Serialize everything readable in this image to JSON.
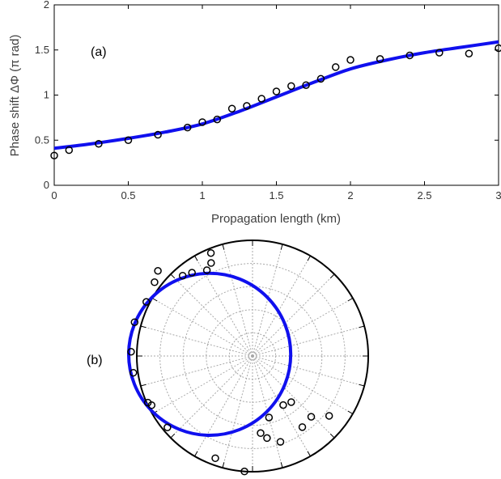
{
  "chart_data": [
    {
      "type": "line",
      "panel_label": "(a)",
      "xlabel": "Propagation length (km)",
      "ylabel": "Phase shift ΔΦ (π rad)",
      "xlim": [
        0,
        3
      ],
      "ylim": [
        0,
        2
      ],
      "xticks": [
        0,
        0.5,
        1,
        1.5,
        2,
        2.5,
        3
      ],
      "xtick_labels": [
        "0",
        "0.5",
        "1",
        "1.5",
        "2",
        "2.5",
        "3"
      ],
      "yticks": [
        0,
        0.5,
        1,
        1.5,
        2
      ],
      "ytick_labels": [
        "0",
        "0.5",
        "1",
        "1.5",
        "2"
      ],
      "grid": false,
      "series": [
        {
          "style": "markers",
          "marker": "open-circle",
          "color": "#000000",
          "x": [
            0,
            0.1,
            0.3,
            0.5,
            0.7,
            0.9,
            1.0,
            1.1,
            1.2,
            1.3,
            1.4,
            1.5,
            1.6,
            1.7,
            1.8,
            1.9,
            2.0,
            2.2,
            2.4,
            2.6,
            2.8,
            3.0
          ],
          "y": [
            0.33,
            0.39,
            0.46,
            0.5,
            0.56,
            0.64,
            0.7,
            0.73,
            0.85,
            0.88,
            0.96,
            1.04,
            1.1,
            1.11,
            1.18,
            1.31,
            1.39,
            1.4,
            1.44,
            1.47,
            1.46,
            1.52
          ]
        },
        {
          "style": "line",
          "color": "#1010ee",
          "x": [
            0,
            0.25,
            0.5,
            0.75,
            1.0,
            1.25,
            1.5,
            1.75,
            2.0,
            2.25,
            2.5,
            2.75,
            3.0
          ],
          "y": [
            0.41,
            0.46,
            0.52,
            0.59,
            0.68,
            0.82,
            0.98,
            1.14,
            1.29,
            1.39,
            1.47,
            1.53,
            1.59
          ]
        }
      ]
    },
    {
      "type": "polar",
      "panel_label": "(b)",
      "radial_max": 1,
      "rings": 5,
      "spokes_deg": 15,
      "grid": true,
      "series": [
        {
          "style": "markers",
          "marker": "open-circle",
          "color": "#000000",
          "angle_deg": [
            112,
            114,
            118,
            126,
            131,
            138,
            143,
            153,
            164,
            178,
            188,
            204,
            206,
            220,
            250,
            260,
            266,
            276,
            280,
            285,
            288,
            302,
            305,
            310,
            314,
            322
          ],
          "radius": [
            0.96,
            0.88,
            0.84,
            0.89,
            0.92,
            1.1,
            1.06,
            1.03,
            1.06,
            1.05,
            1.04,
            0.99,
            0.97,
            0.96,
            0.94,
            1.16,
            1.0,
            0.67,
            0.72,
            0.55,
            0.78,
            0.5,
            0.75,
            0.52,
            0.73,
            0.84
          ]
        },
        {
          "style": "line",
          "color": "#1010ee",
          "curve": "circle",
          "center_xy": [
            -0.37,
            0.015
          ],
          "curve_radius": 0.7
        }
      ]
    }
  ]
}
